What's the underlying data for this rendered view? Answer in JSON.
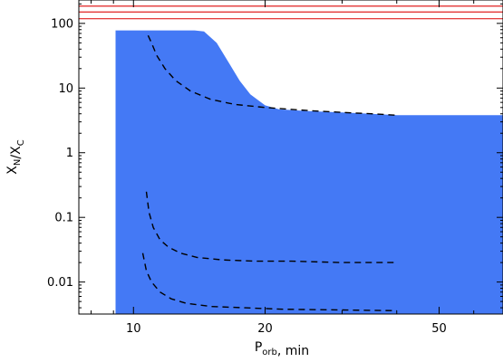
{
  "chart_data": {
    "type": "area",
    "xlabel": "P_orb, min",
    "ylabel": "X_N/X_C",
    "x_scale": "log",
    "y_scale": "log",
    "xlim": [
      7.5,
      70
    ],
    "ylim": [
      0.0032,
      230
    ],
    "x_ticks": [
      {
        "value": 10,
        "label": "10"
      },
      {
        "value": 20,
        "label": "20"
      },
      {
        "value": 50,
        "label": "50"
      }
    ],
    "y_ticks": [
      {
        "value": 0.01,
        "label": "0.01"
      },
      {
        "value": 0.1,
        "label": "0.1"
      },
      {
        "value": 1,
        "label": "1"
      },
      {
        "value": 10,
        "label": "10"
      },
      {
        "value": 100,
        "label": "100"
      }
    ],
    "colors": {
      "region": "#4479f5",
      "reference_lines": "#e02020",
      "tracks": "#000000",
      "background": "#ffffff"
    },
    "reference_lines_y": [
      118,
      150,
      185
    ],
    "region_upper_boundary": {
      "x": [
        9.1,
        13.8,
        14.5,
        15.5,
        16.5,
        17.5,
        18.5,
        20.0,
        21.5,
        25,
        30,
        35,
        40,
        50,
        60,
        70
      ],
      "y": [
        78,
        78,
        75,
        50,
        25,
        13,
        8,
        5.4,
        4.7,
        4.4,
        4.2,
        4.0,
        3.8,
        3.8,
        3.8,
        3.8
      ]
    },
    "region_lower_y": 0.0032,
    "series": [
      {
        "x": [
          10.8,
          11.0,
          11.3,
          11.8,
          12.5,
          13.5,
          15,
          17,
          20,
          25,
          30,
          35,
          40
        ],
        "y": [
          65,
          50,
          32,
          20,
          13,
          9.0,
          6.7,
          5.6,
          5.0,
          4.5,
          4.2,
          4.0,
          3.8
        ]
      },
      {
        "x": [
          10.7,
          10.85,
          11.1,
          11.5,
          12.0,
          12.8,
          14,
          16,
          19,
          23,
          30,
          40
        ],
        "y": [
          0.25,
          0.12,
          0.07,
          0.045,
          0.035,
          0.028,
          0.024,
          0.022,
          0.021,
          0.021,
          0.02,
          0.02
        ]
      },
      {
        "x": [
          10.5,
          10.7,
          11.0,
          11.5,
          12.2,
          13.2,
          15,
          18,
          22,
          30,
          40
        ],
        "y": [
          0.028,
          0.015,
          0.01,
          0.007,
          0.0055,
          0.0047,
          0.0042,
          0.004,
          0.0038,
          0.0037,
          0.0036
        ]
      }
    ]
  }
}
